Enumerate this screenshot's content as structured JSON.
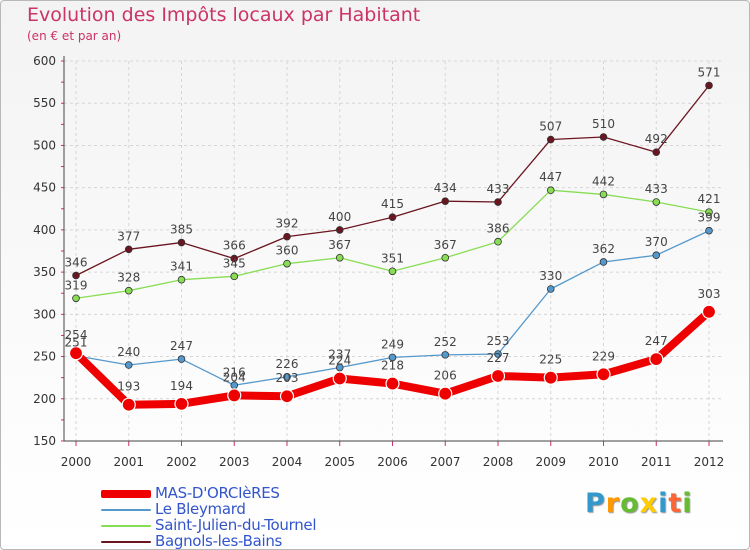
{
  "title": "Evolution des Impôts locaux par Habitant",
  "subtitle": "(en € et par an)",
  "logo": {
    "letters": [
      "P",
      "r",
      "o",
      "x",
      "i",
      "t",
      "i"
    ],
    "colors": [
      "#3399cc",
      "#ff9900",
      "#66bb33",
      "#ffcc00",
      "#3399cc",
      "#ff6633",
      "#66bb33"
    ]
  },
  "chart_data": {
    "type": "line",
    "title": "Evolution des Impôts locaux par Habitant",
    "subtitle": "(en € et par an)",
    "xlabel": "",
    "ylabel": "",
    "ylim": [
      150,
      600
    ],
    "yticks": [
      150,
      200,
      250,
      300,
      350,
      400,
      450,
      500,
      550,
      600
    ],
    "x": [
      "2000",
      "2001",
      "2002",
      "2003",
      "2004",
      "2005",
      "2006",
      "2007",
      "2008",
      "2009",
      "2010",
      "2011",
      "2012"
    ],
    "grid": true,
    "legend": "bottom-left",
    "series": [
      {
        "name": "Bagnols-les-Bains",
        "color": "#6b1520",
        "values": [
          346,
          377,
          385,
          366,
          392,
          400,
          415,
          434,
          433,
          507,
          510,
          492,
          571
        ]
      },
      {
        "name": "Saint-Julien-du-Tournel",
        "color": "#88dd55",
        "values": [
          319,
          328,
          341,
          345,
          360,
          367,
          351,
          367,
          386,
          447,
          442,
          433,
          421
        ]
      },
      {
        "name": "Le Bleymard",
        "color": "#5599cc",
        "values": [
          251,
          240,
          247,
          216,
          226,
          237,
          249,
          252,
          253,
          330,
          362,
          370,
          399
        ]
      },
      {
        "name": "MAS-D'ORCIèRES",
        "color": "#ee0000",
        "values": [
          254,
          193,
          194,
          204,
          203,
          224,
          218,
          206,
          227,
          225,
          229,
          247,
          303
        ]
      }
    ],
    "legend_order": [
      "MAS-D'ORCIèRES",
      "Le Bleymard",
      "Saint-Julien-du-Tournel",
      "Bagnols-les-Bains"
    ]
  }
}
